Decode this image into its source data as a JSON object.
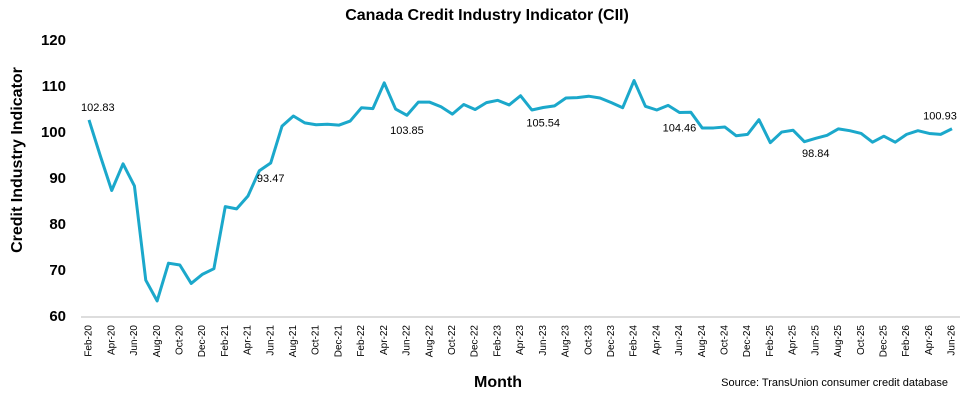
{
  "chart_data": {
    "type": "line",
    "title": "Canada Credit Industry Indicator (CII)",
    "x_label": "Month",
    "y_label": "Credit Industry Indicator",
    "source": "Source: TransUnion consumer credit database",
    "categories": [
      "Feb-20",
      null,
      "Apr-20",
      null,
      "Jun-20",
      null,
      "Aug-20",
      null,
      "Oct-20",
      null,
      "Dec-20",
      null,
      "Feb-21",
      null,
      "Apr-21",
      null,
      "Jun-21",
      null,
      "Aug-21",
      null,
      "Oct-21",
      null,
      "Dec-21",
      null,
      "Feb-22",
      null,
      "Apr-22",
      null,
      "Jun-22",
      null,
      "Aug-22",
      null,
      "Oct-22",
      null,
      "Dec-22",
      null,
      "Feb-23",
      null,
      "Apr-23",
      null,
      "Jun-23",
      null,
      "Aug-23",
      null,
      "Oct-23",
      null,
      "Dec-23",
      null,
      "Feb-24",
      null,
      "Apr-24",
      null,
      "Jun-24",
      null,
      "Aug-24",
      null,
      "Oct-24",
      null,
      "Dec-24",
      null,
      "Feb-25",
      null,
      "Apr-25",
      null,
      "Jun-25",
      null,
      "Aug-25",
      null,
      "Oct-25",
      null,
      "Dec-25",
      null,
      "Feb-26",
      null,
      "Apr-26",
      null,
      "Jun-26"
    ],
    "values": [
      102.83,
      95,
      87.5,
      93.3,
      88.5,
      68,
      63.5,
      71.7,
      71.3,
      67.3,
      69.3,
      70.5,
      84,
      83.5,
      86.3,
      91.8,
      93.47,
      101.5,
      103.7,
      102.2,
      101.8,
      101.9,
      101.7,
      102.6,
      105.5,
      105.3,
      110.9,
      105.2,
      103.85,
      106.7,
      106.7,
      105.7,
      104.1,
      106.2,
      105.1,
      106.6,
      107.1,
      106.1,
      108.1,
      105.0,
      105.54,
      105.9,
      107.6,
      107.7,
      108.0,
      107.6,
      106.6,
      105.5,
      111.4,
      105.8,
      105.0,
      106.0,
      104.46,
      104.5,
      101.1,
      101.1,
      101.3,
      99.4,
      99.7,
      102.9,
      97.9,
      100.2,
      100.6,
      98.1,
      98.84,
      99.5,
      100.9,
      100.5,
      99.9,
      98.0,
      99.3,
      98.0,
      99.7,
      100.5,
      99.9,
      99.7,
      100.93
    ],
    "value_labels": [
      "102.83",
      null,
      null,
      null,
      null,
      null,
      null,
      null,
      null,
      null,
      null,
      null,
      null,
      null,
      null,
      null,
      "93.47",
      null,
      null,
      null,
      null,
      null,
      null,
      null,
      null,
      null,
      null,
      null,
      "103.85",
      null,
      null,
      null,
      null,
      null,
      null,
      null,
      null,
      null,
      null,
      null,
      "105.54",
      null,
      null,
      null,
      null,
      null,
      null,
      null,
      null,
      null,
      null,
      null,
      "104.46",
      null,
      null,
      null,
      null,
      null,
      null,
      null,
      null,
      null,
      null,
      null,
      "98.84",
      null,
      null,
      null,
      null,
      null,
      null,
      null,
      null,
      null,
      null,
      null,
      "100.93"
    ],
    "color": "#1ba8cb",
    "ylim": [
      60,
      120
    ],
    "yticks": [
      60,
      70,
      80,
      90,
      100,
      110,
      120
    ]
  }
}
